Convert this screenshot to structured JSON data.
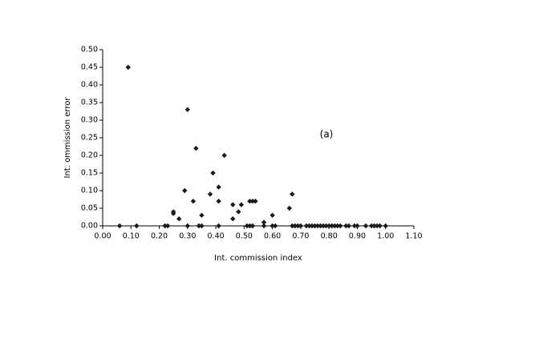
{
  "chart_data": {
    "type": "scatter",
    "x_label": "Int. commission index",
    "y_label": "Int. ommission error",
    "annotation": "(a)",
    "color": "#1a1a1a",
    "x": [
      0.09,
      0.3,
      0.33,
      0.43,
      0.39,
      0.41,
      0.29,
      0.38,
      0.32,
      0.41,
      0.52,
      0.53,
      0.54,
      0.67,
      0.46,
      0.49,
      0.48,
      0.46,
      0.25,
      0.25,
      0.27,
      0.35,
      0.57,
      0.6,
      0.66,
      0.06,
      0.12,
      0.22,
      0.23,
      0.3,
      0.34,
      0.35,
      0.41,
      0.51,
      0.52,
      0.53,
      0.57,
      0.6,
      0.61,
      0.67,
      0.68,
      0.69,
      0.7,
      0.72,
      0.73,
      0.74,
      0.75,
      0.76,
      0.77,
      0.78,
      0.79,
      0.8,
      0.81,
      0.82,
      0.83,
      0.84,
      0.86,
      0.87,
      0.89,
      0.9,
      0.93,
      0.95,
      0.96,
      0.97,
      0.98,
      1.0
    ],
    "y": [
      0.45,
      0.33,
      0.22,
      0.2,
      0.15,
      0.11,
      0.1,
      0.09,
      0.07,
      0.07,
      0.07,
      0.07,
      0.07,
      0.09,
      0.06,
      0.06,
      0.04,
      0.02,
      0.04,
      0.035,
      0.02,
      0.03,
      0.01,
      0.03,
      0.05,
      0,
      0,
      0,
      0,
      0,
      0,
      0,
      0,
      0,
      0,
      0,
      0,
      0,
      0,
      0,
      0,
      0,
      0,
      0,
      0,
      0,
      0,
      0,
      0,
      0,
      0,
      0,
      0,
      0,
      0,
      0,
      0,
      0,
      0,
      0,
      0,
      0,
      0,
      0,
      0,
      0
    ],
    "xlim": [
      0,
      1.1
    ],
    "ylim": [
      0,
      0.5
    ],
    "xticks": [
      {
        "value": 0,
        "label": "0.00"
      },
      {
        "value": 0.1,
        "label": "0.10"
      },
      {
        "value": 0.2,
        "label": "0.20"
      },
      {
        "value": 0.3,
        "label": "0.30"
      },
      {
        "value": 0.4,
        "label": "0.40"
      },
      {
        "value": 0.5,
        "label": "0.50"
      },
      {
        "value": 0.6,
        "label": "0.60"
      },
      {
        "value": 0.7,
        "label": "0.70"
      },
      {
        "value": 0.8,
        "label": "0.80"
      },
      {
        "value": 0.9,
        "label": "0.90"
      },
      {
        "value": 1,
        "label": "1.00"
      },
      {
        "value": 1.1,
        "label": "1.10"
      }
    ],
    "yticks": [
      {
        "value": 0,
        "label": "0.00"
      },
      {
        "value": 0.05,
        "label": "0.05"
      },
      {
        "value": 0.1,
        "label": "0.10"
      },
      {
        "value": 0.15,
        "label": "0.15"
      },
      {
        "value": 0.2,
        "label": "0.20"
      },
      {
        "value": 0.25,
        "label": "0.25"
      },
      {
        "value": 0.3,
        "label": "0.30"
      },
      {
        "value": 0.35,
        "label": "0.35"
      },
      {
        "value": 0.4,
        "label": "0.40"
      },
      {
        "value": 0.45,
        "label": "0.45"
      },
      {
        "value": 0.5,
        "label": "0.50"
      }
    ],
    "grid": false
  }
}
